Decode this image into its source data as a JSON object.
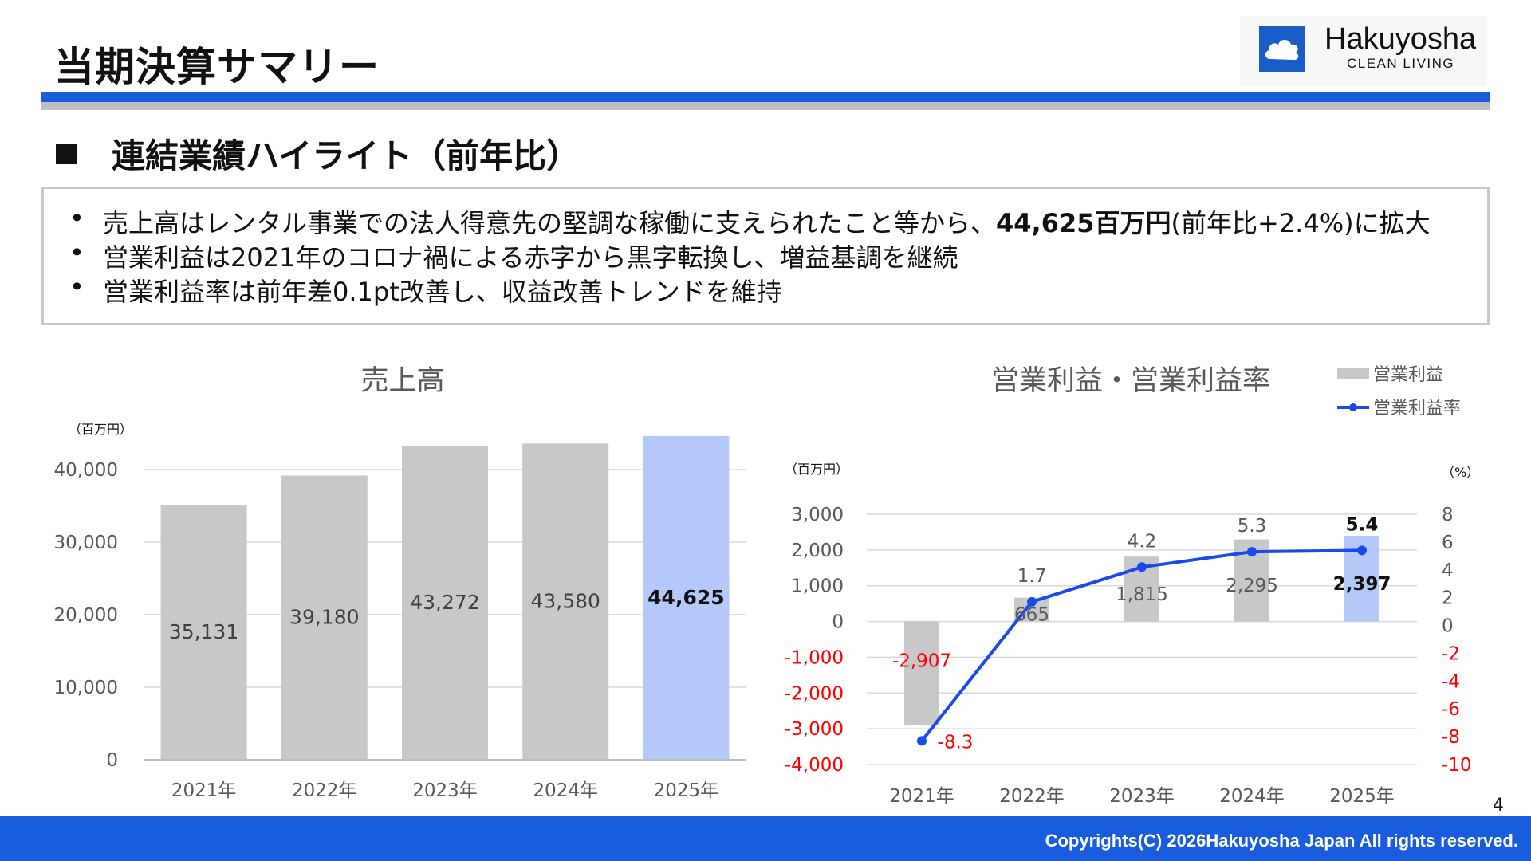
{
  "header": {
    "title": "当期決算サマリー",
    "logo_name": "Hakuyosha",
    "logo_sub": "CLEAN LIVING"
  },
  "section": {
    "title": "連結業績ハイライト（前年比）"
  },
  "summary": {
    "bullet_char": "•",
    "line1_pre": "売上高はレンタル事業での法人得意先の堅調な稼働に支えられたこと等から、",
    "line1_bold": "44,625百万円",
    "line1_post": "(前年比+2.4%)に拡大",
    "line2": "営業利益は2021年のコロナ禍による赤字から黒字転換し、増益基調を継続",
    "line3": "営業利益率は前年差0.1pt改善し、収益改善トレンドを維持"
  },
  "colors": {
    "accent_blue": "#1a5cde",
    "bar_gray": "#c8c8c8",
    "bar_highlight": "#b4c8fa",
    "negative_red": "#ff0000",
    "line_blue": "#1a4be6"
  },
  "chart_data": [
    {
      "type": "bar",
      "title": "売上高",
      "unit_label": "（百万円）",
      "categories": [
        "2021年",
        "2022年",
        "2023年",
        "2024年",
        "2025年"
      ],
      "values": [
        35131,
        39180,
        43272,
        43580,
        44625
      ],
      "value_labels": [
        "35,131",
        "39,180",
        "43,272",
        "43,580",
        "44,625"
      ],
      "highlight_index": 4,
      "ylim": [
        0,
        40000
      ],
      "y_ticks": [
        0,
        10000,
        20000,
        30000,
        40000
      ],
      "y_tick_labels": [
        "0",
        "10,000",
        "20,000",
        "30,000",
        "40,000"
      ],
      "grid": true
    },
    {
      "type": "bar+line",
      "title": "営業利益・営業利益率",
      "left_unit_label": "（百万円）",
      "right_unit_label": "（%）",
      "categories": [
        "2021年",
        "2022年",
        "2023年",
        "2024年",
        "2025年"
      ],
      "series": [
        {
          "name": "営業利益",
          "type": "bar",
          "axis": "left",
          "values": [
            -2907,
            665,
            1815,
            2295,
            2397
          ],
          "value_labels": [
            "-2,907",
            "665",
            "1,815",
            "2,295",
            "2,397"
          ]
        },
        {
          "name": "営業利益率",
          "type": "line",
          "axis": "right",
          "values": [
            -8.3,
            1.7,
            4.2,
            5.3,
            5.4
          ],
          "value_labels": [
            "-8.3",
            "1.7",
            "4.2",
            "5.3",
            "5.4"
          ]
        }
      ],
      "highlight_index": 4,
      "left_ylim": [
        -4000,
        3000
      ],
      "left_ticks": [
        3000,
        2000,
        1000,
        0,
        -1000,
        -2000,
        -3000,
        -4000
      ],
      "left_tick_labels": [
        "3,000",
        "2,000",
        "1,000",
        "0",
        "-1,000",
        "-2,000",
        "-3,000",
        "-4,000"
      ],
      "right_ylim": [
        -10,
        8
      ],
      "right_ticks": [
        8,
        6,
        4,
        2,
        0,
        -2,
        -4,
        -6,
        -8,
        -10
      ],
      "right_tick_labels": [
        "8",
        "6",
        "4",
        "2",
        "0",
        "-2",
        "-4",
        "-6",
        "-8",
        "-10"
      ],
      "legend_position": "top-right",
      "grid": true
    }
  ],
  "page_number": "4",
  "footer": {
    "copyright": "Copyrights(C) 2026Hakuyosha Japan All rights reserved."
  }
}
